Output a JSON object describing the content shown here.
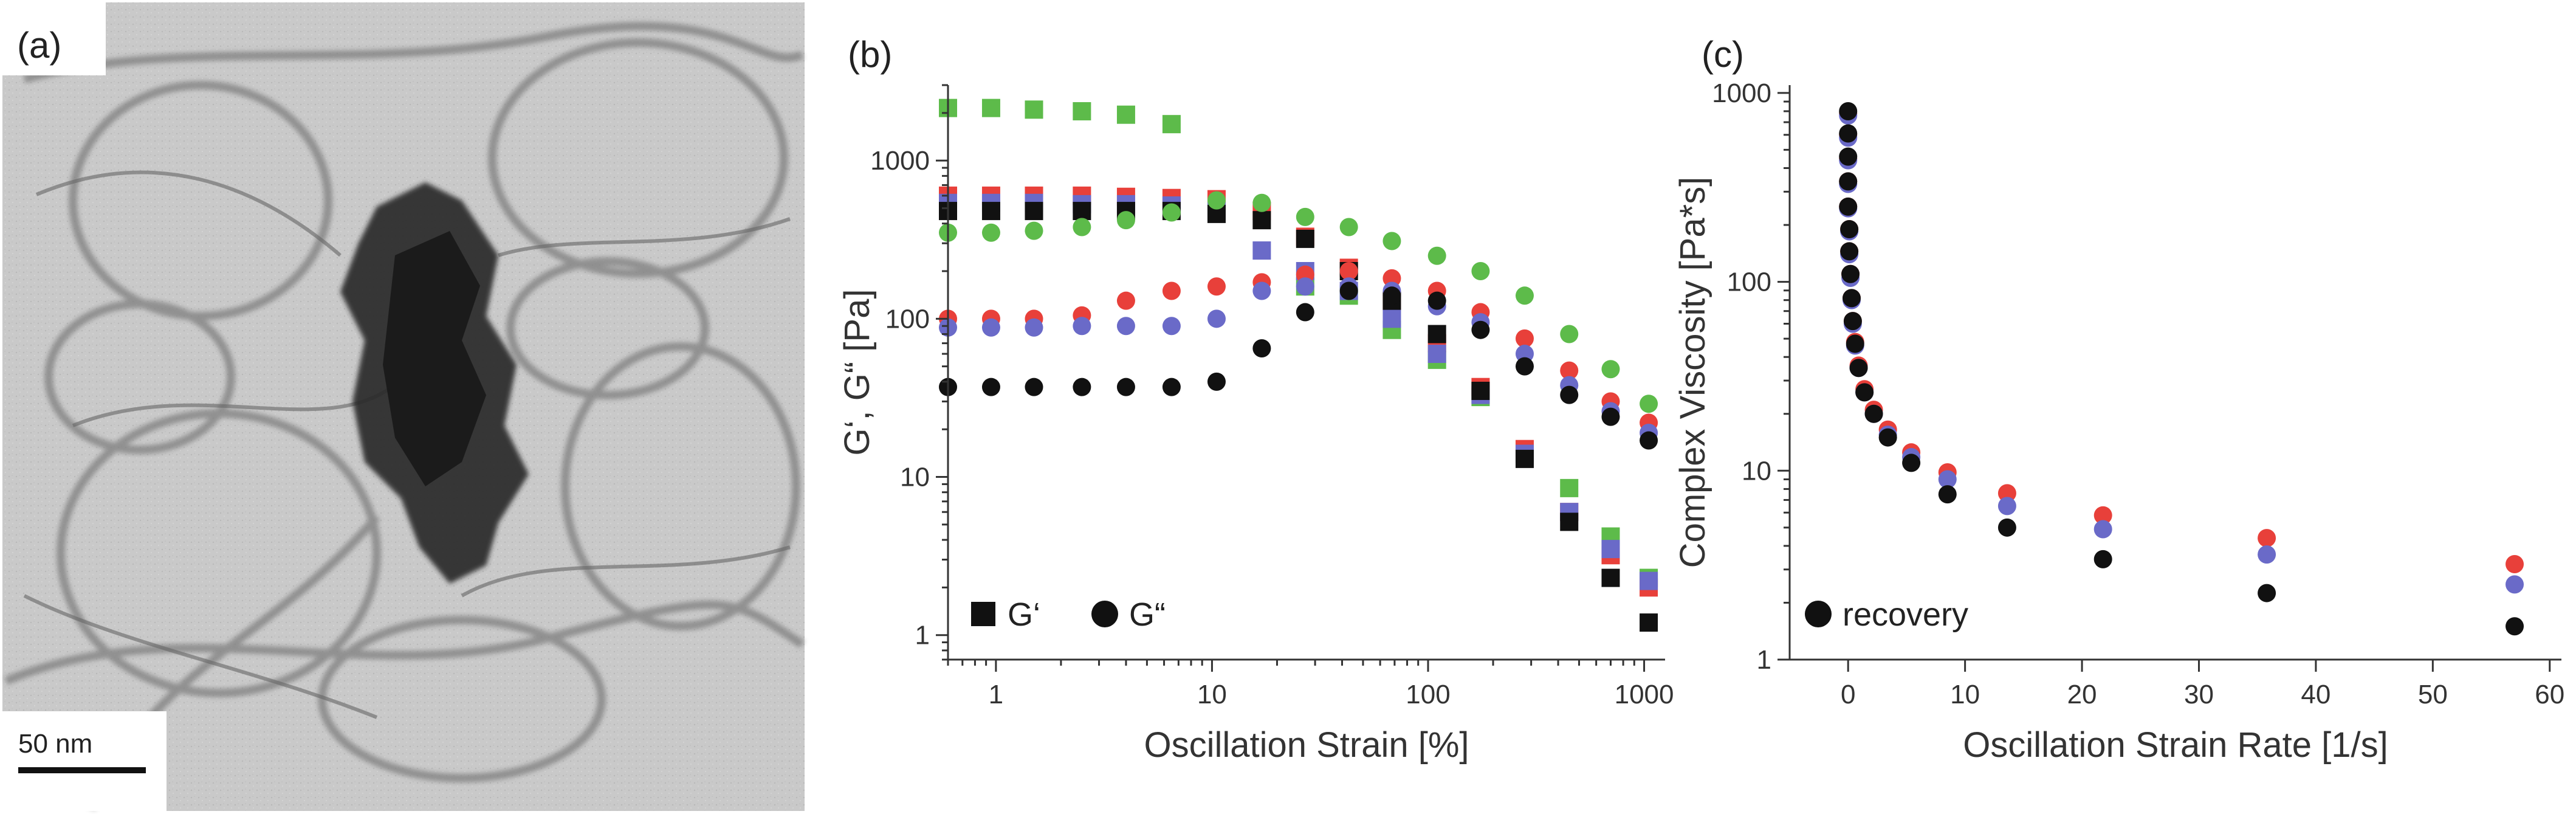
{
  "panel_a": {
    "label": "(a)",
    "scale_bar_label": "50 nm"
  },
  "chart_data": [
    {
      "panel_label": "(b)",
      "type": "scatter",
      "xlabel": "Oscillation Strain [%]",
      "ylabel": "G‘, G“ [Pa]",
      "xscale": "log",
      "yscale": "log",
      "xlim": [
        0.6,
        1250
      ],
      "ylim": [
        0.7,
        3000
      ],
      "xticks": [
        1,
        10,
        100,
        1000
      ],
      "xtick_labels": [
        "1",
        "10",
        "100",
        "1000"
      ],
      "yticks": [
        1,
        10,
        100,
        1000
      ],
      "ytick_labels": [
        "1",
        "10",
        "100",
        "1000"
      ],
      "grid": false,
      "legend": {
        "placement": "bottom-left",
        "entries": [
          {
            "marker": "square",
            "label": "G‘"
          },
          {
            "marker": "circle",
            "label": "G“"
          }
        ]
      },
      "x": [
        0.6,
        0.95,
        1.5,
        2.5,
        4,
        6.5,
        10.5,
        17,
        27,
        43,
        68,
        110,
        175,
        280,
        450,
        700,
        1050
      ],
      "series": [
        {
          "marker": "square",
          "color": "#5dbb4a",
          "values": [
            2150,
            2150,
            2100,
            2050,
            1950,
            1700,
            null,
            null,
            160,
            140,
            85,
            55,
            32,
            14,
            8.5,
            4.2,
            2.3
          ]
        },
        {
          "marker": "square",
          "color": "#e8403a",
          "values": [
            600,
            600,
            600,
            600,
            590,
            580,
            570,
            480,
            330,
            210,
            130,
            70,
            37,
            15,
            6,
            3.2,
            2.0
          ]
        },
        {
          "marker": "square",
          "color": "#6a6ac8",
          "values": [
            540,
            540,
            540,
            530,
            530,
            520,
            480,
            270,
            200,
            150,
            100,
            60,
            33,
            14,
            6,
            3.5,
            2.2
          ]
        },
        {
          "marker": "square",
          "color": "#111111",
          "values": [
            480,
            480,
            480,
            480,
            480,
            480,
            460,
            420,
            320,
            200,
            130,
            80,
            35,
            13,
            5.2,
            2.3,
            1.2
          ]
        },
        {
          "marker": "circle",
          "color": "#5dbb4a",
          "values": [
            350,
            350,
            360,
            380,
            420,
            470,
            560,
            540,
            440,
            380,
            310,
            250,
            200,
            140,
            80,
            48,
            29
          ]
        },
        {
          "marker": "circle",
          "color": "#e8403a",
          "values": [
            100,
            100,
            100,
            105,
            130,
            150,
            160,
            170,
            190,
            200,
            180,
            150,
            110,
            75,
            47,
            30,
            22
          ]
        },
        {
          "marker": "circle",
          "color": "#6a6ac8",
          "values": [
            88,
            88,
            88,
            90,
            90,
            90,
            100,
            150,
            160,
            160,
            150,
            120,
            95,
            60,
            38,
            26,
            19
          ]
        },
        {
          "marker": "circle",
          "color": "#111111",
          "values": [
            37,
            37,
            37,
            37,
            37,
            37,
            40,
            65,
            110,
            150,
            140,
            130,
            85,
            50,
            33,
            24,
            17
          ]
        }
      ]
    },
    {
      "panel_label": "(c)",
      "type": "scatter",
      "xlabel": "Oscillation Strain Rate [1/s]",
      "ylabel": "Complex Viscosity [Pa*s]",
      "xscale": "linear",
      "yscale": "log",
      "xlim": [
        -5,
        61
      ],
      "ylim": [
        1,
        1100
      ],
      "xticks": [
        0,
        10,
        20,
        30,
        40,
        50,
        60
      ],
      "xtick_labels": [
        "0",
        "10",
        "20",
        "30",
        "40",
        "50",
        "60"
      ],
      "yticks": [
        1,
        10,
        100,
        1000
      ],
      "ytick_labels": [
        "1",
        "10",
        "100",
        "1000"
      ],
      "grid": false,
      "legend": {
        "placement": "bottom-left",
        "entries": [
          {
            "marker": "circle",
            "label": "recovery"
          }
        ]
      },
      "x": [
        0,
        0,
        0,
        0,
        0,
        0.1,
        0.1,
        0.2,
        0.3,
        0.4,
        0.6,
        0.9,
        1.4,
        2.2,
        3.4,
        5.4,
        8.5,
        13.6,
        21.8,
        35.8,
        57
      ],
      "series": [
        {
          "marker": "circle",
          "color": "#e8403a",
          "values": [
            780,
            600,
            450,
            340,
            250,
            190,
            145,
            110,
            82,
            62,
            48,
            36,
            27,
            21,
            16.5,
            12.5,
            9.8,
            7.6,
            5.8,
            4.4,
            3.2
          ]
        },
        {
          "marker": "circle",
          "color": "#6a6ac8",
          "values": [
            760,
            580,
            440,
            330,
            245,
            185,
            140,
            105,
            80,
            60,
            46,
            35,
            26,
            20,
            15.5,
            11.8,
            9.0,
            6.5,
            4.9,
            3.6,
            2.5
          ]
        },
        {
          "marker": "circle",
          "color": "#111111",
          "values": [
            800,
            610,
            460,
            340,
            250,
            190,
            145,
            110,
            82,
            62,
            47,
            35,
            26,
            20,
            15,
            11,
            7.5,
            5.0,
            3.4,
            2.25,
            1.5
          ]
        }
      ]
    }
  ]
}
